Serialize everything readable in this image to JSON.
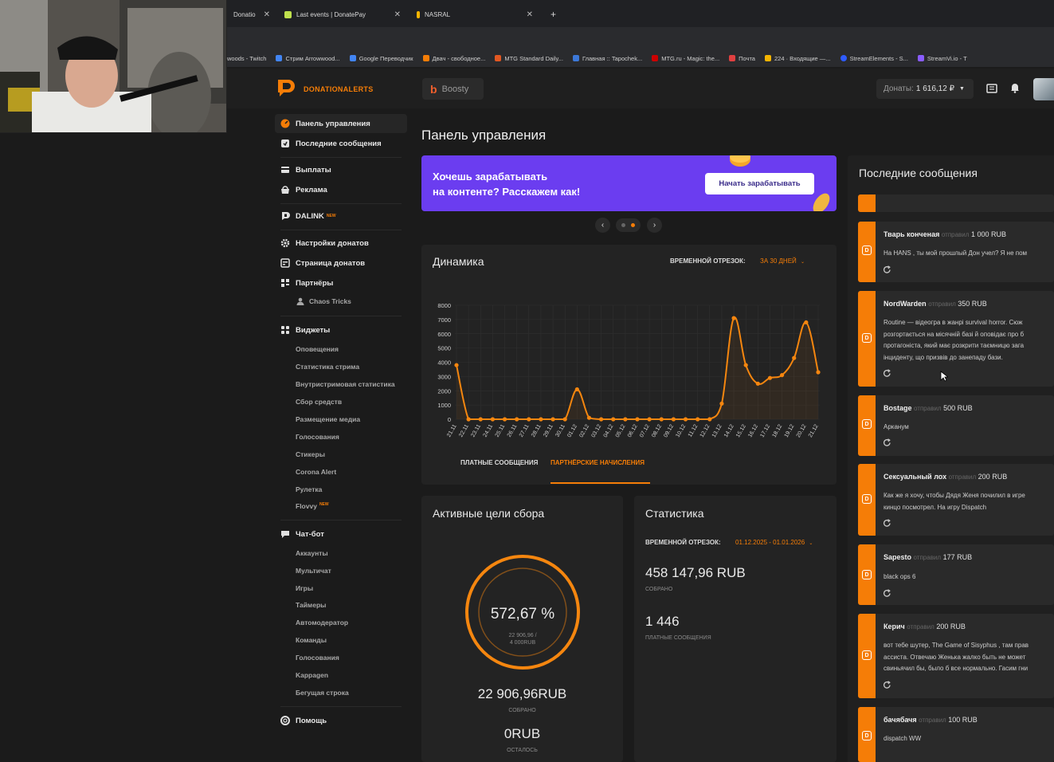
{
  "browser": {
    "tabs": [
      {
        "label": "Donatio",
        "active": false
      },
      {
        "label": "Last events | DonatePay",
        "active": false
      },
      {
        "label": "NASRAL",
        "active": true
      }
    ],
    "new_tab": "+",
    "bookmarks": [
      {
        "label": "woods - Twitch",
        "color": "#888"
      },
      {
        "label": "Стрим Arrowwood...",
        "color": "#4285f4"
      },
      {
        "label": "Google Переводчик",
        "color": "#4285f4"
      },
      {
        "label": "Двач - свободное...",
        "color": "#f57d07"
      },
      {
        "label": "MTG Standard Daily...",
        "color": "#e25822"
      },
      {
        "label": "Главная :: Tapochek...",
        "color": "#3c78d8"
      },
      {
        "label": "MTG.ru - Magic: the...",
        "color": "#c00"
      },
      {
        "label": "Почта",
        "color": "#e04040"
      },
      {
        "label": "224 · Входящие —...",
        "color": "#f4b400"
      },
      {
        "label": "StreamElements - S...",
        "color": "#2e5bff"
      },
      {
        "label": "StreamVi.io - T",
        "color": "#8a5cff"
      }
    ]
  },
  "header": {
    "brand": "DONATIONALERTS",
    "boosty_label": "Boosty",
    "donates_label": "Донаты:",
    "donates_value": "1 616,12 ₽"
  },
  "sidebar": {
    "items": [
      {
        "label": "Панель управления",
        "icon": "dashboard-icon",
        "active": true
      },
      {
        "label": "Последние сообщения",
        "icon": "messages-icon"
      },
      {
        "label": "Выплаты",
        "icon": "payouts-icon"
      },
      {
        "label": "Реклама",
        "icon": "ads-icon"
      },
      {
        "label": "DALINK",
        "icon": "dalink-icon",
        "badge": "NEW"
      },
      {
        "label": "Настройки донатов",
        "icon": "gear-icon"
      },
      {
        "label": "Страница донатов",
        "icon": "page-icon"
      },
      {
        "label": "Партнёры",
        "icon": "partners-icon"
      },
      {
        "label": "Виджеты",
        "icon": "widgets-icon"
      },
      {
        "label": "Чат-бот",
        "icon": "chatbot-icon"
      },
      {
        "label": "Помощь",
        "icon": "help-icon"
      }
    ],
    "partners_sub": "Chaos Tricks",
    "widgets_sub": [
      "Оповещения",
      "Статистика стрима",
      "Внутристримовая статистика",
      "Сбор средств",
      "Размещение медиа",
      "Голосования",
      "Стикеры",
      "Corona Alert",
      "Рулетка",
      "Flovvy"
    ],
    "flovvy_badge": "NEW",
    "chatbot_sub": [
      "Аккаунты",
      "Мультичат",
      "Игры",
      "Таймеры",
      "Автомодератор",
      "Команды",
      "Голосования",
      "Kappagen",
      "Бегущая строка"
    ]
  },
  "main": {
    "title": "Панель управления",
    "banner": {
      "line1": "Хочешь зарабатывать",
      "line2": "на контенте? Расскажем как!",
      "button": "Начать зарабатывать"
    },
    "carousel": {
      "prev": "‹",
      "next": "›"
    },
    "dynamics": {
      "title": "Динамика",
      "period_label": "ВРЕМЕННОЙ ОТРЕЗОК:",
      "period_value": "ЗА 30 ДНЕЙ",
      "tab_paid": "ПЛАТНЫЕ СООБЩЕНИЯ",
      "tab_partner": "ПАРТНЁРСКИЕ НАЧИСЛЕНИЯ"
    },
    "goals": {
      "title": "Активные цели сбора",
      "percent_text": "572,67 %",
      "percent": 572.67,
      "sub_line1": "22 906,96 /",
      "sub_line2": "4 000RUB",
      "collected": "22 906,96RUB",
      "collected_label": "СОБРАНО",
      "left": "0RUB",
      "left_label": "ОСТАЛОСЬ"
    },
    "stats": {
      "title": "Статистика",
      "period_label": "ВРЕМЕННОЙ ОТРЕЗОК:",
      "period_value": "01.12.2025 - 01.01.2026",
      "sum": "458 147,96 RUB",
      "sum_label": "СОБРАНО",
      "count": "1 446",
      "count_label": "ПЛАТНЫЕ СООБЩЕНИЯ"
    }
  },
  "messages": {
    "title": "Последние сообщения",
    "sent_word": "отправил",
    "items": [
      {
        "name": "Тварь конченая",
        "amount": "1 000 RUB",
        "text": "На HANS , ты мой прошлый Дон учел? Я не пом"
      },
      {
        "name": "NordWarden",
        "amount": "350 RUB",
        "text": "Routine — відеогра в жанрі survival horror. Сюж\nрозгортається на місячній базі й оповідає про б\nпротагоніста, який має розкрити таємницю зага\nінциденту, що призвів до занепаду бази."
      },
      {
        "name": "Bostage",
        "amount": "500 RUB",
        "text": "Арканум"
      },
      {
        "name": "Сексуальный лох",
        "amount": "200 RUB",
        "text": "Как же я хочу, чтобы Дядя Женя почилил в игре\nкинцо посмотрел. На игру Dispatch"
      },
      {
        "name": "Sapesto",
        "amount": "177 RUB",
        "text": "black ops 6"
      },
      {
        "name": "Керич",
        "amount": "200 RUB",
        "text": "вот тебе шутер, The Game of Sisyphus , там прав\nассиста. Отвечаю Женька жалко быть не может\nсвиньячил бы, было б все нормально. Гасим гни"
      },
      {
        "name": "бачябачя",
        "amount": "100 RUB",
        "text": "dispatch WW"
      }
    ]
  },
  "chart_data": {
    "type": "line",
    "title": "Динамика",
    "categories": [
      "21.11",
      "22.11",
      "23.11",
      "24.11",
      "25.11",
      "26.11",
      "27.11",
      "28.11",
      "29.11",
      "30.11",
      "01.12",
      "02.12",
      "03.12",
      "04.12",
      "05.12",
      "06.12",
      "07.12",
      "08.12",
      "09.12",
      "10.12",
      "11.12",
      "12.12",
      "13.12",
      "14.12",
      "15.12",
      "16.12",
      "17.12",
      "18.12",
      "19.12",
      "20.12",
      "21.12"
    ],
    "series": [
      {
        "values": [
          3800,
          0,
          0,
          0,
          0,
          0,
          0,
          0,
          0,
          0,
          2100,
          100,
          0,
          0,
          0,
          0,
          0,
          0,
          0,
          0,
          0,
          0,
          1100,
          7100,
          3800,
          2500,
          2900,
          3100,
          4300,
          6800,
          3300
        ]
      }
    ],
    "yticks": [
      0,
      1000,
      2000,
      3000,
      4000,
      5000,
      6000,
      7000,
      8000
    ],
    "ylim": [
      0,
      8000
    ],
    "grid": true,
    "color": "#f5860f"
  }
}
